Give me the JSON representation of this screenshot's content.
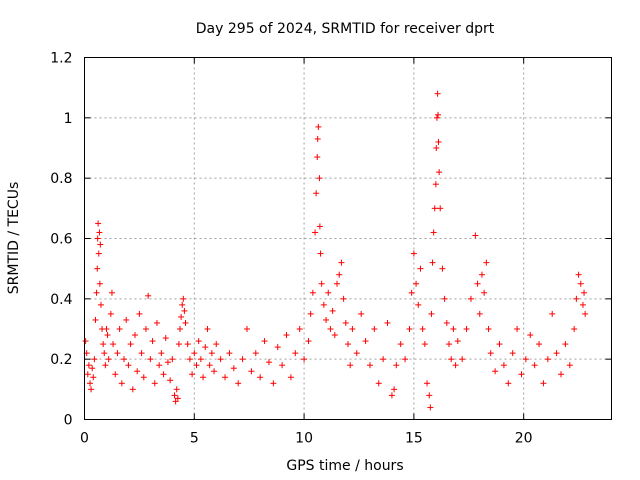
{
  "chart_data": {
    "type": "scatter",
    "title": "Day 295 of 2024, SRMTID for receiver dprt",
    "xlabel": "GPS time / hours",
    "ylabel": "SRMTID / TECUs",
    "xlim": [
      0,
      24
    ],
    "ylim": [
      0,
      1.2
    ],
    "xticks": [
      0,
      5,
      10,
      15,
      20
    ],
    "xtick_labels": [
      "0",
      "5",
      "10",
      "15",
      "20"
    ],
    "yticks": [
      0,
      0.2,
      0.4,
      0.6,
      0.8,
      1.0,
      1.2
    ],
    "ytick_labels": [
      "0",
      "0.2",
      "0.4",
      "0.6",
      "0.8",
      "1",
      "1.2"
    ],
    "grid": true,
    "marker": "+",
    "marker_color": "#ff0000",
    "series": [
      {
        "name": "SRMTID",
        "points": [
          [
            0.05,
            0.26
          ],
          [
            0.1,
            0.22
          ],
          [
            0.15,
            0.15
          ],
          [
            0.2,
            0.18
          ],
          [
            0.25,
            0.12
          ],
          [
            0.3,
            0.1
          ],
          [
            0.35,
            0.17
          ],
          [
            0.4,
            0.14
          ],
          [
            0.45,
            0.2
          ],
          [
            0.5,
            0.33
          ],
          [
            0.55,
            0.42
          ],
          [
            0.58,
            0.5
          ],
          [
            0.6,
            0.6
          ],
          [
            0.62,
            0.65
          ],
          [
            0.65,
            0.55
          ],
          [
            0.68,
            0.62
          ],
          [
            0.7,
            0.45
          ],
          [
            0.72,
            0.58
          ],
          [
            0.75,
            0.38
          ],
          [
            0.8,
            0.3
          ],
          [
            0.85,
            0.25
          ],
          [
            0.9,
            0.22
          ],
          [
            0.95,
            0.18
          ],
          [
            1.0,
            0.3
          ],
          [
            1.05,
            0.28
          ],
          [
            1.1,
            0.2
          ],
          [
            1.2,
            0.35
          ],
          [
            1.25,
            0.42
          ],
          [
            1.3,
            0.25
          ],
          [
            1.4,
            0.15
          ],
          [
            1.5,
            0.22
          ],
          [
            1.6,
            0.3
          ],
          [
            1.7,
            0.12
          ],
          [
            1.8,
            0.2
          ],
          [
            1.9,
            0.33
          ],
          [
            2.0,
            0.18
          ],
          [
            2.1,
            0.25
          ],
          [
            2.2,
            0.1
          ],
          [
            2.3,
            0.28
          ],
          [
            2.4,
            0.16
          ],
          [
            2.5,
            0.35
          ],
          [
            2.6,
            0.22
          ],
          [
            2.7,
            0.14
          ],
          [
            2.8,
            0.3
          ],
          [
            2.9,
            0.41
          ],
          [
            3.0,
            0.2
          ],
          [
            3.1,
            0.26
          ],
          [
            3.2,
            0.12
          ],
          [
            3.3,
            0.32
          ],
          [
            3.4,
            0.18
          ],
          [
            3.5,
            0.22
          ],
          [
            3.6,
            0.15
          ],
          [
            3.7,
            0.27
          ],
          [
            3.8,
            0.19
          ],
          [
            3.9,
            0.13
          ],
          [
            4.0,
            0.2
          ],
          [
            4.1,
            0.08
          ],
          [
            4.15,
            0.06
          ],
          [
            4.2,
            0.1
          ],
          [
            4.25,
            0.07
          ],
          [
            4.3,
            0.25
          ],
          [
            4.35,
            0.3
          ],
          [
            4.4,
            0.34
          ],
          [
            4.45,
            0.38
          ],
          [
            4.5,
            0.4
          ],
          [
            4.55,
            0.36
          ],
          [
            4.6,
            0.32
          ],
          [
            4.7,
            0.25
          ],
          [
            4.8,
            0.2
          ],
          [
            4.9,
            0.15
          ],
          [
            5.0,
            0.22
          ],
          [
            5.1,
            0.18
          ],
          [
            5.2,
            0.26
          ],
          [
            5.3,
            0.2
          ],
          [
            5.4,
            0.14
          ],
          [
            5.5,
            0.24
          ],
          [
            5.6,
            0.3
          ],
          [
            5.7,
            0.18
          ],
          [
            5.8,
            0.22
          ],
          [
            5.9,
            0.16
          ],
          [
            6.0,
            0.25
          ],
          [
            6.2,
            0.2
          ],
          [
            6.4,
            0.14
          ],
          [
            6.6,
            0.22
          ],
          [
            6.8,
            0.17
          ],
          [
            7.0,
            0.12
          ],
          [
            7.2,
            0.2
          ],
          [
            7.4,
            0.3
          ],
          [
            7.6,
            0.16
          ],
          [
            7.8,
            0.22
          ],
          [
            8.0,
            0.14
          ],
          [
            8.2,
            0.26
          ],
          [
            8.4,
            0.19
          ],
          [
            8.6,
            0.12
          ],
          [
            8.8,
            0.24
          ],
          [
            9.0,
            0.18
          ],
          [
            9.2,
            0.28
          ],
          [
            9.4,
            0.14
          ],
          [
            9.6,
            0.22
          ],
          [
            9.8,
            0.3
          ],
          [
            10.0,
            0.2
          ],
          [
            10.2,
            0.26
          ],
          [
            10.3,
            0.35
          ],
          [
            10.4,
            0.42
          ],
          [
            10.5,
            0.62
          ],
          [
            10.55,
            0.75
          ],
          [
            10.6,
            0.87
          ],
          [
            10.62,
            0.93
          ],
          [
            10.65,
            0.97
          ],
          [
            10.7,
            0.8
          ],
          [
            10.72,
            0.64
          ],
          [
            10.75,
            0.55
          ],
          [
            10.8,
            0.45
          ],
          [
            10.9,
            0.38
          ],
          [
            11.0,
            0.33
          ],
          [
            11.1,
            0.42
          ],
          [
            11.2,
            0.3
          ],
          [
            11.3,
            0.36
          ],
          [
            11.4,
            0.28
          ],
          [
            11.5,
            0.45
          ],
          [
            11.6,
            0.48
          ],
          [
            11.7,
            0.52
          ],
          [
            11.8,
            0.4
          ],
          [
            11.9,
            0.32
          ],
          [
            12.0,
            0.25
          ],
          [
            12.1,
            0.18
          ],
          [
            12.2,
            0.3
          ],
          [
            12.4,
            0.22
          ],
          [
            12.6,
            0.35
          ],
          [
            12.8,
            0.26
          ],
          [
            13.0,
            0.18
          ],
          [
            13.2,
            0.3
          ],
          [
            13.4,
            0.12
          ],
          [
            13.6,
            0.2
          ],
          [
            13.8,
            0.32
          ],
          [
            14.0,
            0.08
          ],
          [
            14.1,
            0.1
          ],
          [
            14.2,
            0.18
          ],
          [
            14.4,
            0.25
          ],
          [
            14.6,
            0.2
          ],
          [
            14.8,
            0.3
          ],
          [
            14.9,
            0.42
          ],
          [
            15.0,
            0.55
          ],
          [
            15.1,
            0.45
          ],
          [
            15.2,
            0.38
          ],
          [
            15.3,
            0.5
          ],
          [
            15.4,
            0.3
          ],
          [
            15.5,
            0.25
          ],
          [
            15.6,
            0.12
          ],
          [
            15.7,
            0.08
          ],
          [
            15.75,
            0.04
          ],
          [
            15.8,
            0.35
          ],
          [
            15.85,
            0.52
          ],
          [
            15.9,
            0.62
          ],
          [
            15.95,
            0.7
          ],
          [
            16.0,
            0.78
          ],
          [
            16.02,
            0.9
          ],
          [
            16.05,
            1.0
          ],
          [
            16.08,
            1.08
          ],
          [
            16.1,
            1.01
          ],
          [
            16.12,
            0.92
          ],
          [
            16.15,
            0.82
          ],
          [
            16.2,
            0.7
          ],
          [
            16.3,
            0.5
          ],
          [
            16.4,
            0.4
          ],
          [
            16.5,
            0.32
          ],
          [
            16.6,
            0.25
          ],
          [
            16.7,
            0.2
          ],
          [
            16.8,
            0.3
          ],
          [
            16.9,
            0.18
          ],
          [
            17.0,
            0.26
          ],
          [
            17.2,
            0.2
          ],
          [
            17.4,
            0.3
          ],
          [
            17.6,
            0.4
          ],
          [
            17.8,
            0.61
          ],
          [
            17.9,
            0.45
          ],
          [
            18.0,
            0.35
          ],
          [
            18.1,
            0.48
          ],
          [
            18.2,
            0.42
          ],
          [
            18.3,
            0.52
          ],
          [
            18.4,
            0.3
          ],
          [
            18.5,
            0.22
          ],
          [
            18.7,
            0.16
          ],
          [
            18.9,
            0.25
          ],
          [
            19.1,
            0.18
          ],
          [
            19.3,
            0.12
          ],
          [
            19.5,
            0.22
          ],
          [
            19.7,
            0.3
          ],
          [
            19.9,
            0.15
          ],
          [
            20.1,
            0.2
          ],
          [
            20.3,
            0.28
          ],
          [
            20.5,
            0.18
          ],
          [
            20.7,
            0.25
          ],
          [
            20.9,
            0.12
          ],
          [
            21.1,
            0.2
          ],
          [
            21.3,
            0.35
          ],
          [
            21.5,
            0.22
          ],
          [
            21.7,
            0.15
          ],
          [
            21.9,
            0.25
          ],
          [
            22.1,
            0.18
          ],
          [
            22.3,
            0.3
          ],
          [
            22.4,
            0.4
          ],
          [
            22.5,
            0.48
          ],
          [
            22.6,
            0.45
          ],
          [
            22.7,
            0.38
          ],
          [
            22.75,
            0.42
          ],
          [
            22.8,
            0.35
          ]
        ]
      }
    ]
  }
}
